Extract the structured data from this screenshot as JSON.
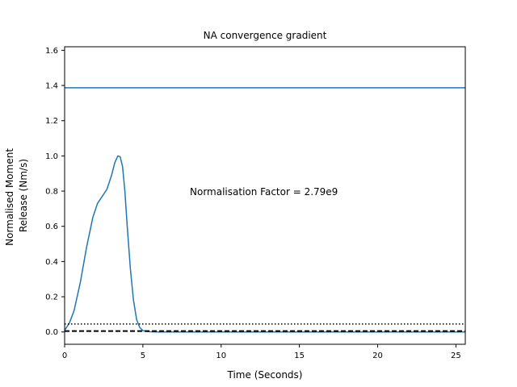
{
  "chart_data": {
    "type": "line",
    "title": "NA convergence gradient",
    "xlabel": "Time (Seconds)",
    "ylabel_lines": [
      "Normalised Moment",
      "Release (Nm/s)"
    ],
    "xlim": [
      0,
      25.6
    ],
    "ylim": [
      -0.07,
      1.62
    ],
    "xticks": [
      0,
      5,
      10,
      15,
      20,
      25
    ],
    "yticks": [
      0.0,
      0.2,
      0.4,
      0.6,
      0.8,
      1.0,
      1.2,
      1.4,
      1.6
    ],
    "grid": false,
    "annotation": {
      "text": "Normalisation Factor = 2.79e9",
      "x": 8.0,
      "y": 0.8
    },
    "series": [
      {
        "style": "solid",
        "color": "#1f77b4",
        "x": [
          0,
          0.3,
          0.6,
          1.0,
          1.4,
          1.8,
          2.1,
          2.4,
          2.7,
          3.0,
          3.2,
          3.4,
          3.55,
          3.7,
          3.85,
          4.0,
          4.2,
          4.4,
          4.6,
          4.8,
          5.0,
          5.2,
          5.5,
          6.0,
          8.0,
          12.0,
          16.0,
          20.0,
          25.6
        ],
        "values": [
          0.01,
          0.05,
          0.12,
          0.28,
          0.48,
          0.65,
          0.73,
          0.77,
          0.81,
          0.89,
          0.96,
          1.0,
          0.995,
          0.94,
          0.8,
          0.6,
          0.36,
          0.18,
          0.07,
          0.025,
          0.008,
          0.003,
          0.001,
          0.0,
          0.0,
          0.0,
          0.0,
          0.0,
          0.0
        ]
      },
      {
        "style": "solid",
        "color": "#1f77b4",
        "x": [
          0,
          25.6
        ],
        "values": [
          1.387,
          1.387
        ]
      },
      {
        "style": "dotted",
        "color": "#000000",
        "x": [
          0,
          25.6
        ],
        "values": [
          0.045,
          0.045
        ]
      },
      {
        "style": "dashed",
        "color": "#000000",
        "x": [
          0,
          25.6
        ],
        "values": [
          0.005,
          0.005
        ]
      }
    ]
  }
}
